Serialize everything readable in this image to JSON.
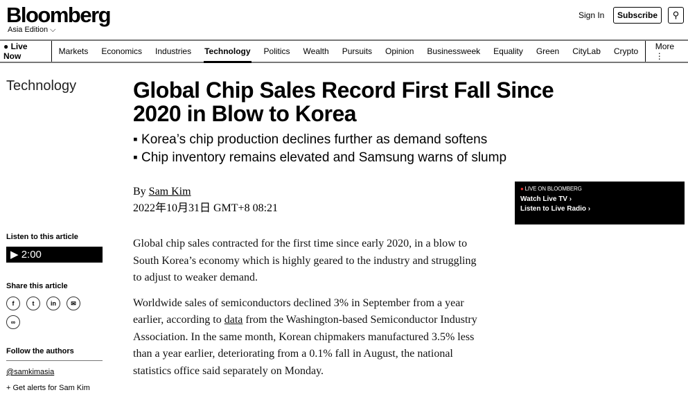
{
  "header": {
    "logo": "Bloomberg",
    "edition": "Asia Edition",
    "sign_in": "Sign In",
    "subscribe": "Subscribe",
    "search_icon": "magnifier"
  },
  "nav": {
    "live": "● Live Now",
    "items": [
      "Markets",
      "Economics",
      "Industries",
      "Technology",
      "Politics",
      "Wealth",
      "Pursuits",
      "Opinion",
      "Businessweek",
      "Equality",
      "Green",
      "CityLab",
      "Crypto"
    ],
    "active": "Technology",
    "more": "More ⋮"
  },
  "article": {
    "section": "Technology",
    "headline": "Global Chip Sales Record First Fall Since 2020 in Blow to Korea",
    "bullets": [
      "Korea’s chip production declines further as demand softens",
      "Chip inventory remains elevated and Samsung warns of slump"
    ],
    "by": "By ",
    "author": "Sam Kim",
    "date": "2022年10月31日 GMT+8 08:21",
    "p1": "Global chip sales contracted for the first time since early 2020, in a blow to South Korea’s economy which is highly geared to the industry and struggling to adjust to weaker demand.",
    "p2a": "Worldwide sales of semiconductors declined 3% in September from a year earlier, according to ",
    "p2link": "data",
    "p2b": " from the Washington-based Semiconductor Industry Association. In the same month, Korean chipmakers manufactured 3.5% less than a year earlier, deteriorating from a 0.1% fall in August, the national statistics office said separately on Monday."
  },
  "live_box": {
    "label": "LIVE ON BLOOMBERG",
    "watch": "Watch Live TV ›",
    "listen": "Listen to Live Radio ›"
  },
  "sidebar": {
    "listen_heading": "Listen to this article",
    "player": "▶ 2:00",
    "share_heading": "Share this article",
    "share_icons": [
      "facebook",
      "twitter",
      "linkedin",
      "email",
      "link"
    ],
    "follow_heading": "Follow the authors",
    "handle": "@samkimasia",
    "alerts": "+ Get alerts for Sam Kim"
  }
}
